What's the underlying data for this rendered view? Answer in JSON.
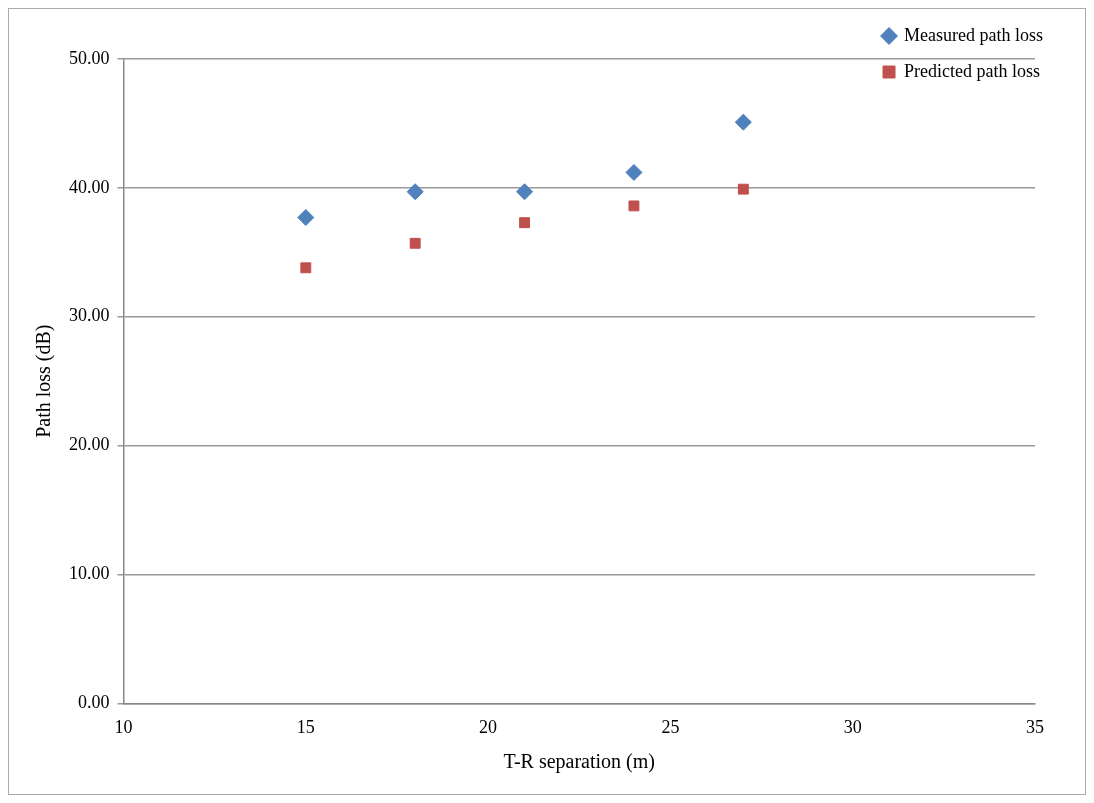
{
  "chart_data": {
    "type": "scatter",
    "xlabel": "T-R separation (m)",
    "ylabel": "Path loss (dB)",
    "x": [
      15,
      18,
      21,
      24,
      27
    ],
    "series": [
      {
        "name": "Measured path loss",
        "color": "#4f81bd",
        "marker": "diamond",
        "values": [
          37.7,
          39.7,
          39.7,
          41.2,
          45.1
        ]
      },
      {
        "name": "Predicted path loss",
        "color": "#c0504d",
        "marker": "square",
        "values": [
          33.8,
          35.7,
          37.3,
          38.6,
          39.9
        ]
      }
    ],
    "xlim": [
      10,
      35
    ],
    "xticks": [
      10,
      15,
      20,
      25,
      30,
      35
    ],
    "ylim": [
      0,
      50
    ],
    "yticks": [
      {
        "value": 0,
        "label": "0.00"
      },
      {
        "value": 10,
        "label": "10.00"
      },
      {
        "value": 20,
        "label": "20.00"
      },
      {
        "value": 30,
        "label": "30.00"
      },
      {
        "value": 40,
        "label": "40.00"
      },
      {
        "value": 50,
        "label": "50.00"
      }
    ],
    "grid": "y",
    "legend": "top right"
  }
}
